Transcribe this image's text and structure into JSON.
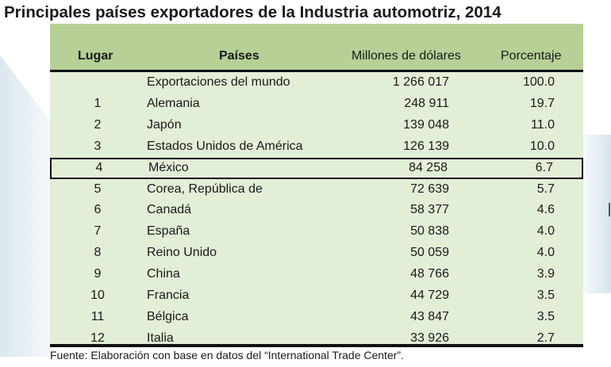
{
  "title": "Principales países exportadores de la Industria automotriz, 2014",
  "columns": {
    "rank": "Lugar",
    "country": "Países",
    "value": "Millones de dólares",
    "pct": "Porcentaje"
  },
  "chart_data": {
    "type": "table",
    "title": "Principales países exportadores de la Industria automotriz, 2014",
    "headers": [
      "Lugar",
      "Países",
      "Millones de dólares",
      "Porcentaje"
    ],
    "highlighted_row": "México",
    "rows": [
      {
        "rank": "",
        "country": "Exportaciones del mundo",
        "value": "1 266 017",
        "pct": "100.0"
      },
      {
        "rank": "1",
        "country": "Alemania",
        "value": "248 911",
        "pct": "19.7"
      },
      {
        "rank": "2",
        "country": "Japón",
        "value": "139 048",
        "pct": "11.0"
      },
      {
        "rank": "3",
        "country": "Estados Unidos de América",
        "value": "126 139",
        "pct": "10.0"
      },
      {
        "rank": "4",
        "country": "México",
        "value": "84 258",
        "pct": "6.7"
      },
      {
        "rank": "5",
        "country": "Corea, República de",
        "value": "72 639",
        "pct": "5.7"
      },
      {
        "rank": "6",
        "country": "Canadá",
        "value": "58 377",
        "pct": "4.6"
      },
      {
        "rank": "7",
        "country": "España",
        "value": "50 838",
        "pct": "4.0"
      },
      {
        "rank": "8",
        "country": "Reino Unido",
        "value": "50 059",
        "pct": "4.0"
      },
      {
        "rank": "9",
        "country": "China",
        "value": "48 766",
        "pct": "3.9"
      },
      {
        "rank": "10",
        "country": "Francia",
        "value": "44 729",
        "pct": "3.5"
      },
      {
        "rank": "11",
        "country": "Bélgica",
        "value": "43 847",
        "pct": "3.5"
      },
      {
        "rank": "12",
        "country": "Italia",
        "value": "33 926",
        "pct": "2.7"
      }
    ]
  },
  "footer": "Fuente: Elaboración con base en datos del “International Trade Center”.",
  "colors": {
    "header_band": "#b6d096",
    "body_band": "#e3eed7",
    "rule": "#111111"
  }
}
